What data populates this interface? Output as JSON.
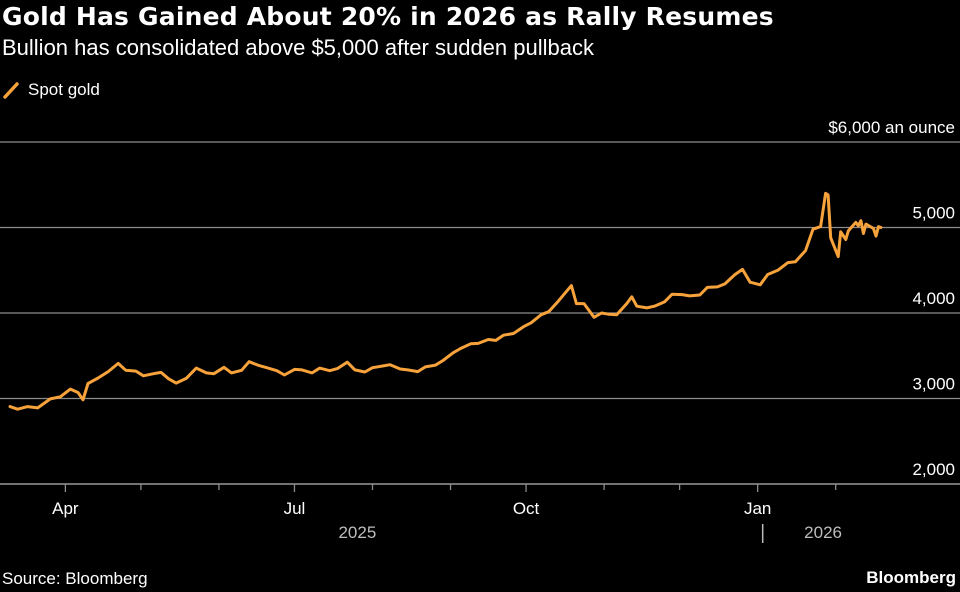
{
  "title": "Gold Has Gained About 20% in 2026 as Rally Resumes",
  "subtitle": "Bullion has consolidated above $5,000 after sudden pullback",
  "source": "Source: Bloomberg",
  "brand": "Bloomberg",
  "colors": {
    "series": "#f7a23b",
    "grid": "#8c8c8c",
    "background": "#000000"
  },
  "chart_data": {
    "type": "line",
    "legend": "top-left",
    "grid": true,
    "xlim": [
      "2025-03-10",
      "2026-02-19"
    ],
    "ylim": [
      2000,
      6000
    ],
    "y_ticks": [
      {
        "value": 6000,
        "label": "$6,000 an ounce"
      },
      {
        "value": 5000,
        "label": "5,000"
      },
      {
        "value": 4000,
        "label": "4,000"
      },
      {
        "value": 3000,
        "label": "3,000"
      },
      {
        "value": 2000,
        "label": "2,000"
      }
    ],
    "x_ticks": [
      {
        "date": "2025-04-01",
        "label": "Apr"
      },
      {
        "date": "2025-07-01",
        "label": "Jul"
      },
      {
        "date": "2025-10-01",
        "label": "Oct"
      },
      {
        "date": "2026-01-01",
        "label": "Jan"
      }
    ],
    "minor_ticks": [
      "2025-03-01",
      "2025-05-01",
      "2025-06-01",
      "2025-08-01",
      "2025-09-01",
      "2025-11-01",
      "2025-12-01",
      "2026-02-01"
    ],
    "year_labels": [
      {
        "label": "2025",
        "at": "2025-07-26"
      },
      {
        "label": "2026",
        "at": "2026-01-27"
      }
    ],
    "year_separator": "2026-01-03",
    "series": [
      {
        "name": "Spot gold",
        "points": [
          [
            "2025-03-10",
            2905
          ],
          [
            "2025-03-13",
            2875
          ],
          [
            "2025-03-17",
            2905
          ],
          [
            "2025-03-21",
            2890
          ],
          [
            "2025-03-26",
            2995
          ],
          [
            "2025-03-30",
            3020
          ],
          [
            "2025-04-03",
            3110
          ],
          [
            "2025-04-06",
            3070
          ],
          [
            "2025-04-08",
            2985
          ],
          [
            "2025-04-10",
            3175
          ],
          [
            "2025-04-14",
            3240
          ],
          [
            "2025-04-18",
            3315
          ],
          [
            "2025-04-22",
            3410
          ],
          [
            "2025-04-25",
            3330
          ],
          [
            "2025-04-29",
            3320
          ],
          [
            "2025-05-02",
            3265
          ],
          [
            "2025-05-06",
            3290
          ],
          [
            "2025-05-09",
            3305
          ],
          [
            "2025-05-12",
            3230
          ],
          [
            "2025-05-15",
            3180
          ],
          [
            "2025-05-19",
            3235
          ],
          [
            "2025-05-23",
            3355
          ],
          [
            "2025-05-27",
            3300
          ],
          [
            "2025-05-30",
            3290
          ],
          [
            "2025-06-03",
            3365
          ],
          [
            "2025-06-06",
            3300
          ],
          [
            "2025-06-10",
            3330
          ],
          [
            "2025-06-13",
            3430
          ],
          [
            "2025-06-17",
            3385
          ],
          [
            "2025-06-20",
            3360
          ],
          [
            "2025-06-24",
            3325
          ],
          [
            "2025-06-27",
            3275
          ],
          [
            "2025-07-01",
            3340
          ],
          [
            "2025-07-04",
            3335
          ],
          [
            "2025-07-08",
            3300
          ],
          [
            "2025-07-11",
            3355
          ],
          [
            "2025-07-15",
            3325
          ],
          [
            "2025-07-18",
            3350
          ],
          [
            "2025-07-22",
            3425
          ],
          [
            "2025-07-25",
            3335
          ],
          [
            "2025-07-29",
            3310
          ],
          [
            "2025-08-01",
            3360
          ],
          [
            "2025-08-05",
            3380
          ],
          [
            "2025-08-08",
            3395
          ],
          [
            "2025-08-12",
            3345
          ],
          [
            "2025-08-15",
            3335
          ],
          [
            "2025-08-19",
            3315
          ],
          [
            "2025-08-22",
            3370
          ],
          [
            "2025-08-26",
            3390
          ],
          [
            "2025-08-29",
            3445
          ],
          [
            "2025-09-02",
            3535
          ],
          [
            "2025-09-05",
            3585
          ],
          [
            "2025-09-09",
            3640
          ],
          [
            "2025-09-12",
            3645
          ],
          [
            "2025-09-16",
            3690
          ],
          [
            "2025-09-19",
            3680
          ],
          [
            "2025-09-22",
            3740
          ],
          [
            "2025-09-26",
            3760
          ],
          [
            "2025-09-30",
            3840
          ],
          [
            "2025-10-03",
            3885
          ],
          [
            "2025-10-07",
            3980
          ],
          [
            "2025-10-10",
            4015
          ],
          [
            "2025-10-14",
            4145
          ],
          [
            "2025-10-17",
            4250
          ],
          [
            "2025-10-19",
            4320
          ],
          [
            "2025-10-21",
            4110
          ],
          [
            "2025-10-24",
            4110
          ],
          [
            "2025-10-28",
            3950
          ],
          [
            "2025-10-31",
            4000
          ],
          [
            "2025-11-03",
            3985
          ],
          [
            "2025-11-06",
            3980
          ],
          [
            "2025-11-10",
            4110
          ],
          [
            "2025-11-12",
            4190
          ],
          [
            "2025-11-14",
            4080
          ],
          [
            "2025-11-18",
            4060
          ],
          [
            "2025-11-21",
            4080
          ],
          [
            "2025-11-25",
            4130
          ],
          [
            "2025-11-28",
            4220
          ],
          [
            "2025-12-02",
            4215
          ],
          [
            "2025-12-05",
            4200
          ],
          [
            "2025-12-09",
            4210
          ],
          [
            "2025-12-12",
            4300
          ],
          [
            "2025-12-16",
            4305
          ],
          [
            "2025-12-19",
            4340
          ],
          [
            "2025-12-23",
            4450
          ],
          [
            "2025-12-26",
            4510
          ],
          [
            "2025-12-29",
            4360
          ],
          [
            "2026-01-02",
            4330
          ],
          [
            "2026-01-05",
            4450
          ],
          [
            "2026-01-09",
            4500
          ],
          [
            "2026-01-13",
            4590
          ],
          [
            "2026-01-16",
            4600
          ],
          [
            "2026-01-20",
            4730
          ],
          [
            "2026-01-23",
            4980
          ],
          [
            "2026-01-26",
            5010
          ],
          [
            "2026-01-28",
            5400
          ],
          [
            "2026-01-29",
            5380
          ],
          [
            "2026-01-30",
            4880
          ],
          [
            "2026-02-02",
            4660
          ],
          [
            "2026-02-03",
            4950
          ],
          [
            "2026-02-05",
            4860
          ],
          [
            "2026-02-06",
            4960
          ],
          [
            "2026-02-09",
            5060
          ],
          [
            "2026-02-10",
            5020
          ],
          [
            "2026-02-11",
            5080
          ],
          [
            "2026-02-12",
            4930
          ],
          [
            "2026-02-13",
            5040
          ],
          [
            "2026-02-16",
            4990
          ],
          [
            "2026-02-17",
            4900
          ],
          [
            "2026-02-18",
            5010
          ],
          [
            "2026-02-19",
            5000
          ]
        ]
      }
    ]
  }
}
